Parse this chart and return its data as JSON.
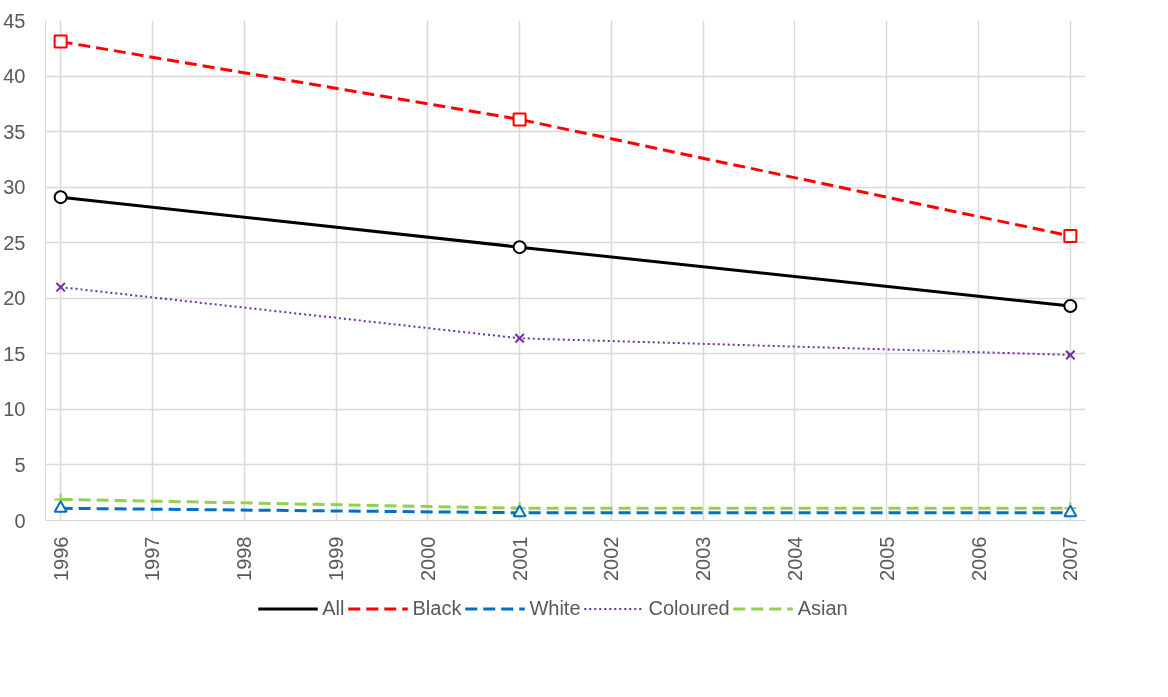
{
  "chart_data": {
    "type": "line",
    "x": [
      1996,
      2001,
      2007
    ],
    "xlim": [
      1996,
      2007
    ],
    "xticks": [
      1996,
      1997,
      1998,
      1999,
      2000,
      2001,
      2002,
      2003,
      2004,
      2005,
      2006,
      2007
    ],
    "ylim": [
      0,
      45
    ],
    "yticks": [
      0,
      5,
      10,
      15,
      20,
      25,
      30,
      35,
      40,
      45
    ],
    "grid": true,
    "legend": "bottom",
    "series": [
      {
        "name": "All",
        "color": "#000000",
        "values": [
          29.1,
          24.6,
          19.3
        ],
        "marker": "circle",
        "line_style": "solid"
      },
      {
        "name": "Black",
        "color": "#ff0000",
        "values": [
          43.1,
          36.1,
          25.6
        ],
        "marker": "square",
        "line_style": "dashed"
      },
      {
        "name": "White",
        "color": "#0070c0",
        "values": [
          1.1,
          0.7,
          0.7
        ],
        "marker": "triangle",
        "line_style": "dashed"
      },
      {
        "name": "Coloured",
        "color": "#7030a0",
        "values": [
          21.0,
          16.4,
          14.9
        ],
        "marker": "x",
        "line_style": "dotted"
      },
      {
        "name": "Asian",
        "color": "#92d050",
        "values": [
          1.9,
          1.1,
          1.1
        ],
        "marker": "cross",
        "line_style": "dashed"
      }
    ]
  }
}
